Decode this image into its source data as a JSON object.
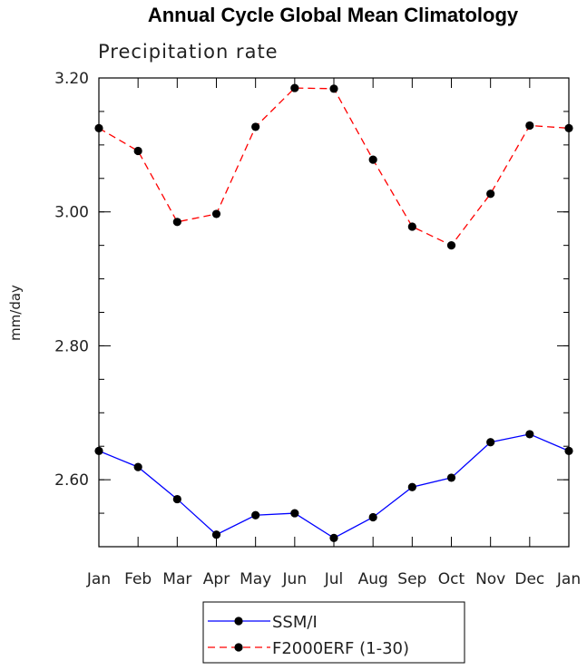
{
  "chart_data": {
    "type": "line",
    "title": "Annual Cycle Global Mean Climatology",
    "subtitle": "Precipitation rate",
    "ylabel": "mm/day",
    "xlabel": "",
    "categories": [
      "Jan",
      "Feb",
      "Mar",
      "Apr",
      "May",
      "Jun",
      "Jul",
      "Aug",
      "Sep",
      "Oct",
      "Nov",
      "Dec",
      "Jan"
    ],
    "ylim": [
      2.5,
      3.2
    ],
    "yticks": [
      2.6,
      2.8,
      3.0,
      3.2
    ],
    "ytick_labels": [
      "2.60",
      "2.80",
      "3.00",
      "3.20"
    ],
    "grid": false,
    "legend_position": "bottom-center",
    "series": [
      {
        "name": "SSM/I",
        "color": "#0000ff",
        "line_style": "solid",
        "values": [
          2.643,
          2.619,
          2.571,
          2.518,
          2.547,
          2.55,
          2.513,
          2.544,
          2.589,
          2.603,
          2.656,
          2.668,
          2.643
        ]
      },
      {
        "name": "F2000ERF (1-30)",
        "color": "#ff0000",
        "line_style": "dashed",
        "values": [
          3.125,
          3.091,
          2.985,
          2.997,
          3.127,
          3.185,
          3.184,
          3.078,
          2.978,
          2.95,
          3.027,
          3.129,
          3.125
        ]
      }
    ]
  }
}
